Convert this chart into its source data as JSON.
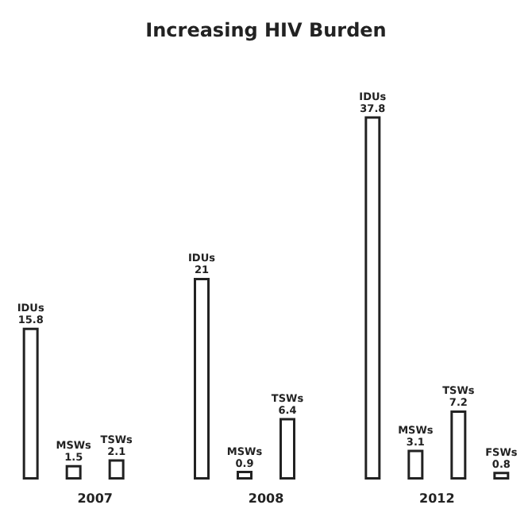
{
  "chart_data": {
    "type": "bar",
    "title": "Increasing HIV Burden",
    "categories": [
      "2007",
      "2008",
      "2012"
    ],
    "series": [
      {
        "name": "IDUs",
        "color": "#ffffff",
        "values": [
          15.8,
          21,
          37.8
        ]
      },
      {
        "name": "MSWs",
        "color": "#ffffff",
        "values": [
          1.5,
          0.9,
          3.1
        ]
      },
      {
        "name": "TSWs",
        "color": "#ffffff",
        "values": [
          2.1,
          6.4,
          7.2
        ]
      },
      {
        "name": "FSWs",
        "color": "#ffffff",
        "values": [
          null,
          null,
          0.8
        ]
      }
    ],
    "data_labels": true
  }
}
